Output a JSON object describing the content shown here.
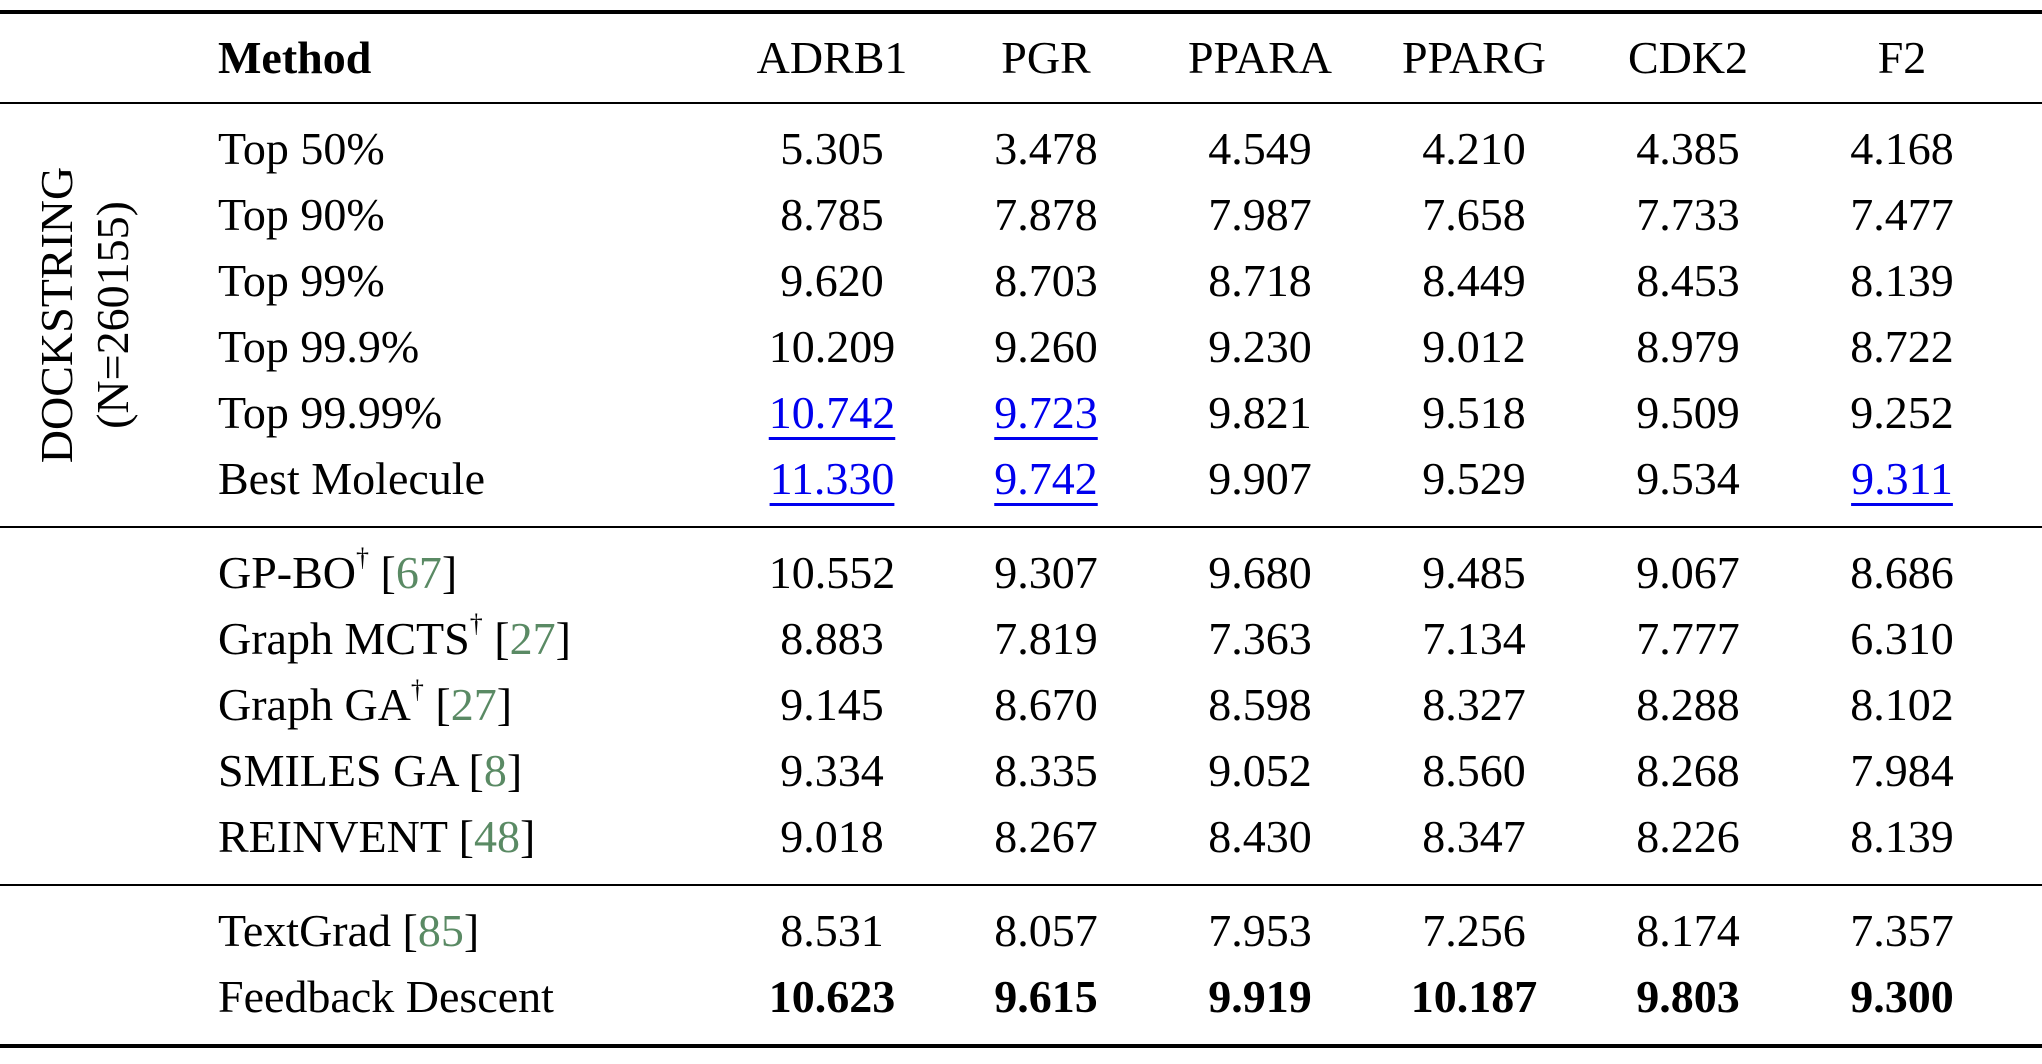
{
  "table": {
    "group_label": {
      "line1": "DOCKSTRING",
      "line2": "(N=260155)"
    },
    "columns": [
      "Method",
      "ADRB1",
      "PGR",
      "PPARA",
      "PPARG",
      "CDK2",
      "F2"
    ],
    "symbols": {
      "dagger": "†",
      "cite_open": "[",
      "cite_close": "]"
    },
    "colors": {
      "best_value_blue": "#0000ee",
      "citation_green": "#5a8a64",
      "text_black": "#000000",
      "background": "#ffffff"
    },
    "blocks": [
      {
        "name": "dataset-statistics",
        "rows": [
          {
            "method": {
              "text": "Top 50%"
            },
            "values": [
              {
                "v": "5.305"
              },
              {
                "v": "3.478"
              },
              {
                "v": "4.549"
              },
              {
                "v": "4.210"
              },
              {
                "v": "4.385"
              },
              {
                "v": "4.168"
              }
            ]
          },
          {
            "method": {
              "text": "Top 90%"
            },
            "values": [
              {
                "v": "8.785"
              },
              {
                "v": "7.878"
              },
              {
                "v": "7.987"
              },
              {
                "v": "7.658"
              },
              {
                "v": "7.733"
              },
              {
                "v": "7.477"
              }
            ]
          },
          {
            "method": {
              "text": "Top 99%"
            },
            "values": [
              {
                "v": "9.620"
              },
              {
                "v": "8.703"
              },
              {
                "v": "8.718"
              },
              {
                "v": "8.449"
              },
              {
                "v": "8.453"
              },
              {
                "v": "8.139"
              }
            ]
          },
          {
            "method": {
              "text": "Top 99.9%"
            },
            "values": [
              {
                "v": "10.209"
              },
              {
                "v": "9.260"
              },
              {
                "v": "9.230"
              },
              {
                "v": "9.012"
              },
              {
                "v": "8.979"
              },
              {
                "v": "8.722"
              }
            ]
          },
          {
            "method": {
              "text": "Top 99.99%"
            },
            "values": [
              {
                "v": "10.742",
                "hl": "blue"
              },
              {
                "v": "9.723",
                "hl": "blue"
              },
              {
                "v": "9.821"
              },
              {
                "v": "9.518"
              },
              {
                "v": "9.509"
              },
              {
                "v": "9.252"
              }
            ]
          },
          {
            "method": {
              "text": "Best Molecule"
            },
            "values": [
              {
                "v": "11.330",
                "hl": "blue"
              },
              {
                "v": "9.742",
                "hl": "blue"
              },
              {
                "v": "9.907"
              },
              {
                "v": "9.529"
              },
              {
                "v": "9.534"
              },
              {
                "v": "9.311",
                "hl": "blue"
              }
            ]
          }
        ]
      },
      {
        "name": "baseline-methods",
        "rows": [
          {
            "method": {
              "text": "GP-BO",
              "dagger": true,
              "cite": "67"
            },
            "values": [
              {
                "v": "10.552"
              },
              {
                "v": "9.307"
              },
              {
                "v": "9.680"
              },
              {
                "v": "9.485"
              },
              {
                "v": "9.067"
              },
              {
                "v": "8.686"
              }
            ]
          },
          {
            "method": {
              "text": "Graph MCTS",
              "dagger": true,
              "cite": "27"
            },
            "values": [
              {
                "v": "8.883"
              },
              {
                "v": "7.819"
              },
              {
                "v": "7.363"
              },
              {
                "v": "7.134"
              },
              {
                "v": "7.777"
              },
              {
                "v": "6.310"
              }
            ]
          },
          {
            "method": {
              "text": "Graph GA",
              "dagger": true,
              "cite": "27"
            },
            "values": [
              {
                "v": "9.145"
              },
              {
                "v": "8.670"
              },
              {
                "v": "8.598"
              },
              {
                "v": "8.327"
              },
              {
                "v": "8.288"
              },
              {
                "v": "8.102"
              }
            ]
          },
          {
            "method": {
              "text": "SMILES GA",
              "cite": "8"
            },
            "values": [
              {
                "v": "9.334"
              },
              {
                "v": "8.335"
              },
              {
                "v": "9.052"
              },
              {
                "v": "8.560"
              },
              {
                "v": "8.268"
              },
              {
                "v": "7.984"
              }
            ]
          },
          {
            "method": {
              "text": "REINVENT",
              "cite": "48"
            },
            "values": [
              {
                "v": "9.018"
              },
              {
                "v": "8.267"
              },
              {
                "v": "8.430"
              },
              {
                "v": "8.347"
              },
              {
                "v": "8.226"
              },
              {
                "v": "8.139"
              }
            ]
          }
        ]
      },
      {
        "name": "text-optimization-methods",
        "rows": [
          {
            "method": {
              "text": "TextGrad",
              "cite": "85"
            },
            "values": [
              {
                "v": "8.531"
              },
              {
                "v": "8.057"
              },
              {
                "v": "7.953"
              },
              {
                "v": "7.256"
              },
              {
                "v": "8.174"
              },
              {
                "v": "7.357"
              }
            ]
          },
          {
            "method": {
              "text": "Feedback Descent"
            },
            "values": [
              {
                "v": "10.623",
                "hl": "bold"
              },
              {
                "v": "9.615",
                "hl": "bold"
              },
              {
                "v": "9.919",
                "hl": "bold"
              },
              {
                "v": "10.187",
                "hl": "bold"
              },
              {
                "v": "9.803",
                "hl": "bold"
              },
              {
                "v": "9.300",
                "hl": "bold"
              }
            ]
          }
        ]
      }
    ]
  }
}
